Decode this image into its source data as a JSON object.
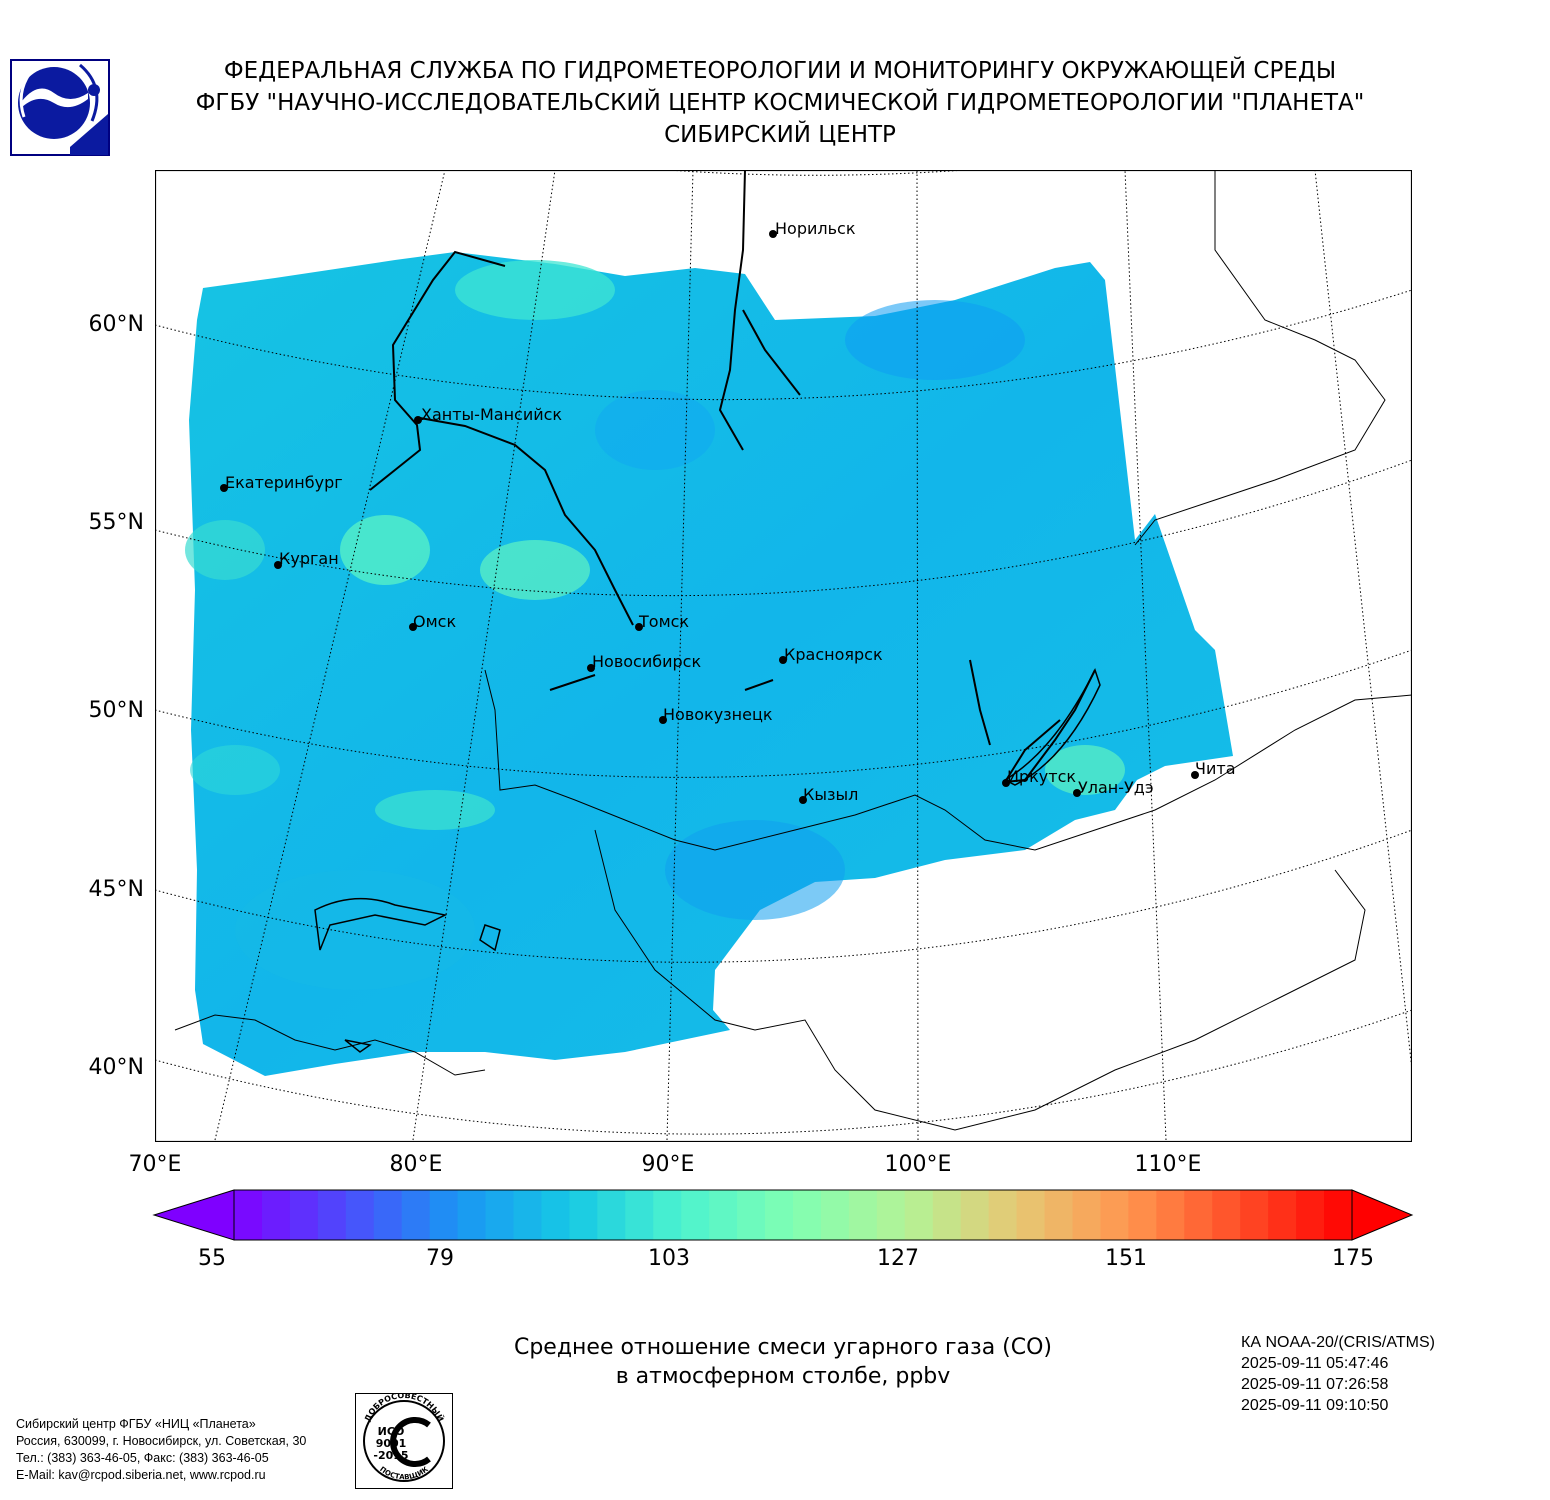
{
  "header": {
    "line1": "ФЕДЕРАЛЬНАЯ СЛУЖБА ПО ГИДРОМЕТЕОРОЛОГИИ И МОНИТОРИНГУ ОКРУЖАЮЩЕЙ СРЕДЫ",
    "line2": "ФГБУ \"НАУЧНО-ИССЛЕДОВАТЕЛЬСКИЙ ЦЕНТР КОСМИЧЕСКОЙ ГИДРОМЕТЕОРОЛОГИИ \"ПЛАНЕТА\"",
    "line3": "СИБИРСКИЙ ЦЕНТР"
  },
  "map": {
    "lat_labels": [
      "60°N",
      "55°N",
      "50°N",
      "45°N",
      "40°N"
    ],
    "lon_labels": [
      "70°E",
      "80°E",
      "90°E",
      "100°E",
      "110°E"
    ],
    "cities": [
      {
        "name": "Норильск"
      },
      {
        "name": "Ханты-Мансийск"
      },
      {
        "name": "Екатеринбург"
      },
      {
        "name": "Курган"
      },
      {
        "name": "Омск"
      },
      {
        "name": "Томск"
      },
      {
        "name": "Новосибирск"
      },
      {
        "name": "Красноярск"
      },
      {
        "name": "Новокузнецк"
      },
      {
        "name": "Кызыл"
      },
      {
        "name": "Иркутск"
      },
      {
        "name": "Улан-Удэ"
      },
      {
        "name": "Чита"
      }
    ]
  },
  "colorbar": {
    "ticks": [
      "55",
      "79",
      "103",
      "127",
      "151",
      "175"
    ],
    "min": 55,
    "max": 175,
    "stops": [
      "#7f00ff",
      "#4c4dfc",
      "#1a96f3",
      "#16c8e5",
      "#4df3ce",
      "#80feb3",
      "#b3f396",
      "#e6c874",
      "#ff964f",
      "#ff4d27",
      "#ff0000"
    ]
  },
  "product_title": {
    "line1": "Среднее отношение смеси угарного газа (CO)",
    "line2": "в атмосферном столбе, ppbv"
  },
  "satellite_info": {
    "line1": "КА NOAA-20/(CRIS/ATMS)",
    "line2": "2025-09-11 05:47:46",
    "line3": "2025-09-11 07:26:58",
    "line4": "2025-09-11 09:10:50"
  },
  "org_info": {
    "line1": "Сибирский центр ФГБУ «НИЦ «Планета»",
    "line2": "Россия, 630099, г. Новосибирск, ул. Советская, 30",
    "line3": "Тел.: (383) 363-46-05, Факс: (383) 363-46-05",
    "line4": "E-Mail: kav@rcpod.siberia.net, www.rcpod.ru"
  },
  "iso_logo": {
    "top_text": "ДОБРОСОВЕСТНЫЙ",
    "middle_line1": "ИСО",
    "middle_line2": "9001",
    "middle_line3": "-2015",
    "bottom_text": "ПОСТАВЩИК"
  }
}
